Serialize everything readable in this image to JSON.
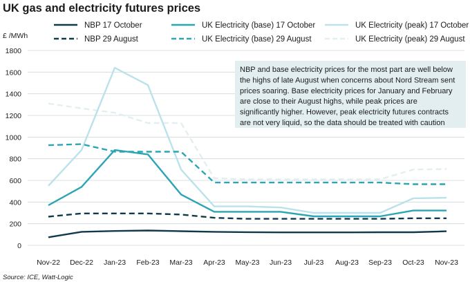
{
  "chart_data": {
    "type": "line",
    "title": "UK gas and electricity futures prices",
    "ylabel": "£ /MWh",
    "xlabel": "",
    "categories": [
      "Nov-22",
      "Dec-22",
      "Jan-23",
      "Feb-23",
      "Mar-23",
      "Apr-23",
      "May-23",
      "Jun-23",
      "Jul-23",
      "Aug-23",
      "Sep-23",
      "Oct-23",
      "Nov-23"
    ],
    "ylim": [
      0,
      1800
    ],
    "yticks": [
      0,
      200,
      400,
      600,
      800,
      1000,
      1200,
      1400,
      1600,
      1800
    ],
    "grid": "horizontal",
    "legend_position": "top",
    "series": [
      {
        "name": "NBP 17 October",
        "color": "#0f3a4a",
        "dash": "solid",
        "width": 2.4,
        "values": [
          75,
          125,
          133,
          137,
          131,
          125,
          122,
          120,
          120,
          120,
          121,
          121,
          130
        ]
      },
      {
        "name": "UK Electricity (base) 17 October",
        "color": "#2aa5b4",
        "dash": "solid",
        "width": 2.4,
        "values": [
          370,
          540,
          880,
          840,
          470,
          310,
          310,
          310,
          268,
          268,
          268,
          322,
          322
        ]
      },
      {
        "name": "UK Electricity (peak) 17 October",
        "color": "#b9e2ea",
        "dash": "solid",
        "width": 2.4,
        "values": [
          550,
          880,
          1640,
          1480,
          700,
          360,
          360,
          350,
          300,
          300,
          300,
          435,
          440
        ]
      },
      {
        "name": "NBP 29 August",
        "color": "#0f3a4a",
        "dash": "dashed",
        "width": 2.4,
        "values": [
          265,
          295,
          295,
          295,
          285,
          255,
          245,
          245,
          245,
          245,
          245,
          250,
          250
        ]
      },
      {
        "name": "UK Electricity (base) 29 August",
        "color": "#2aa5b4",
        "dash": "dashed",
        "width": 2.4,
        "values": [
          925,
          935,
          865,
          865,
          865,
          580,
          580,
          580,
          580,
          580,
          580,
          565,
          565
        ]
      },
      {
        "name": "UK Electricity (peak) 29 August",
        "color": "#e3eef1",
        "dash": "dashed",
        "width": 2.4,
        "values": [
          1310,
          1265,
          1225,
          1130,
          1130,
          620,
          610,
          610,
          610,
          610,
          610,
          700,
          705
        ]
      }
    ],
    "annotation": {
      "lines": [
        "NBP and base electricity prices for the most part are well below",
        "the highs of late August when concerns about Nord Stream sent",
        "prices soaring. Base electricity prices for January and February",
        "are close to their August highs, while peak prices are",
        "significantly higher. However, peak electricity futures contracts",
        "are not very liquid, so the data should be treated with caution"
      ],
      "background": "#e3eef1"
    },
    "source": "Source: ICE, Watt-Logic"
  }
}
